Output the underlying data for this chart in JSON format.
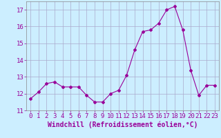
{
  "x": [
    0,
    1,
    2,
    3,
    4,
    5,
    6,
    7,
    8,
    9,
    10,
    11,
    12,
    13,
    14,
    15,
    16,
    17,
    18,
    19,
    20,
    21,
    22,
    23
  ],
  "y": [
    11.7,
    12.1,
    12.6,
    12.7,
    12.4,
    12.4,
    12.4,
    11.9,
    11.5,
    11.5,
    12.0,
    12.2,
    13.1,
    14.6,
    15.7,
    15.8,
    16.2,
    17.0,
    17.2,
    15.8,
    13.4,
    11.9,
    12.5,
    12.5
  ],
  "line_color": "#990099",
  "marker": "D",
  "marker_size": 2,
  "bg_color": "#cceeff",
  "grid_color": "#aaaacc",
  "xlabel": "Windchill (Refroidissement éolien,°C)",
  "xlabel_fontsize": 7,
  "ylim": [
    11,
    17.5
  ],
  "xlim": [
    -0.5,
    23.5
  ],
  "yticks": [
    11,
    12,
    13,
    14,
    15,
    16,
    17
  ],
  "xticks": [
    0,
    1,
    2,
    3,
    4,
    5,
    6,
    7,
    8,
    9,
    10,
    11,
    12,
    13,
    14,
    15,
    16,
    17,
    18,
    19,
    20,
    21,
    22,
    23
  ],
  "tick_fontsize": 6.5
}
